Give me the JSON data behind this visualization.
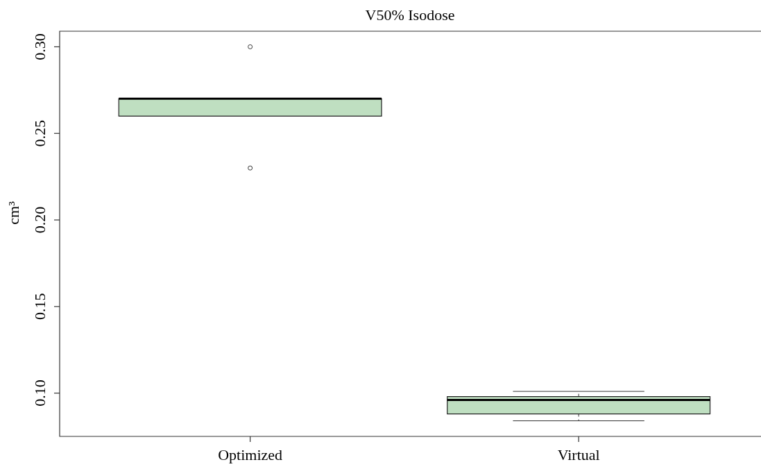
{
  "chart_data": {
    "type": "box",
    "title": "V50% Isodose",
    "ylabel": "cm³",
    "categories": [
      "Optimized",
      "Virtual"
    ],
    "color": "#bfdfc1",
    "boxes": [
      {
        "low": 0.26,
        "q1": 0.26,
        "median": 0.27,
        "q3": 0.27,
        "high": 0.27,
        "outliers": [
          0.3,
          0.23
        ]
      },
      {
        "low": 0.084,
        "q1": 0.088,
        "median": 0.096,
        "q3": 0.098,
        "high": 0.101
      }
    ],
    "ylim": [
      0.075,
      0.309
    ],
    "yticks": [
      {
        "value": 0.1,
        "label": "0.10"
      },
      0.15,
      {
        "value": 0.2,
        "label": "0.20"
      },
      0.25,
      {
        "value": 0.3,
        "label": "0.30"
      }
    ]
  }
}
